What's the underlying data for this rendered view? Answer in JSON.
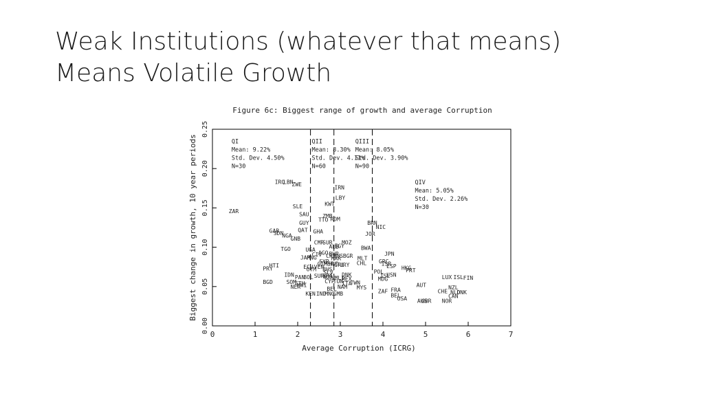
{
  "slide": {
    "title_line1": "Weak Institutions (whatever that means)",
    "title_line2": "Means Volatile Growth"
  },
  "chart_data": {
    "type": "scatter",
    "title": "Figure 6c: Biggest range of growth and average Corruption",
    "xlabel": "Average Corruption (ICRG)",
    "ylabel": "Biggest change in growth, 10 year periods",
    "xlim": [
      0,
      7
    ],
    "ylim": [
      0,
      0.25
    ],
    "x_ticks": [
      "0",
      "1",
      "2",
      "3",
      "4",
      "5",
      "6",
      "7"
    ],
    "y_ticks": [
      "0.00",
      "0.05",
      "0.10",
      "0.15",
      "0.20",
      "0.25"
    ],
    "grid": false,
    "dividers_x": [
      2.3,
      2.85,
      3.75
    ],
    "quadrants": [
      {
        "name": "QI",
        "x": 0.45,
        "y": 0.232,
        "lines": [
          "QI",
          "Mean: 9.22%",
          "Std. Dev. 4.50%",
          "N=30"
        ]
      },
      {
        "name": "QII",
        "x": 2.33,
        "y": 0.232,
        "lines": [
          "QII",
          "Mean: 8.30%",
          "Std. Dev. 4.11%",
          "N=60"
        ]
      },
      {
        "name": "QIII",
        "x": 3.35,
        "y": 0.232,
        "lines": [
          "QIII",
          "Mean: 8.05%",
          "Std. Dev. 3.90%",
          "N=90"
        ]
      },
      {
        "name": "QIV",
        "x": 4.75,
        "y": 0.18,
        "lines": [
          "QIV",
          "Mean: 5.05%",
          "Std. Dev. 2.26%",
          "N=30"
        ]
      }
    ],
    "points": [
      {
        "label": "IRQ",
        "x": 1.58,
        "y": 0.183
      },
      {
        "label": "LBN",
        "x": 1.78,
        "y": 0.183
      },
      {
        "label": "ZWE",
        "x": 1.98,
        "y": 0.18
      },
      {
        "label": "IRN",
        "x": 2.98,
        "y": 0.176
      },
      {
        "label": "LBY",
        "x": 3.0,
        "y": 0.163
      },
      {
        "label": "KWT",
        "x": 2.75,
        "y": 0.155
      },
      {
        "label": "SLE",
        "x": 2.0,
        "y": 0.152
      },
      {
        "label": "ZAR",
        "x": 0.5,
        "y": 0.146
      },
      {
        "label": "SAU",
        "x": 2.15,
        "y": 0.142
      },
      {
        "label": "ZMB",
        "x": 2.7,
        "y": 0.14
      },
      {
        "label": "ROM",
        "x": 2.88,
        "y": 0.136
      },
      {
        "label": "TTO",
        "x": 2.6,
        "y": 0.135
      },
      {
        "label": "GUY",
        "x": 2.15,
        "y": 0.131
      },
      {
        "label": "BRN",
        "x": 3.75,
        "y": 0.131
      },
      {
        "label": "NIC",
        "x": 3.95,
        "y": 0.126
      },
      {
        "label": "GAB",
        "x": 1.45,
        "y": 0.121
      },
      {
        "label": "QAT",
        "x": 2.12,
        "y": 0.122
      },
      {
        "label": "SDN",
        "x": 1.55,
        "y": 0.118
      },
      {
        "label": "NGA",
        "x": 1.75,
        "y": 0.115
      },
      {
        "label": "GHA",
        "x": 2.48,
        "y": 0.12
      },
      {
        "label": "JOR",
        "x": 3.7,
        "y": 0.117
      },
      {
        "label": "GNB",
        "x": 1.95,
        "y": 0.111
      },
      {
        "label": "CMR",
        "x": 2.5,
        "y": 0.106
      },
      {
        "label": "SUR",
        "x": 2.7,
        "y": 0.106
      },
      {
        "label": "MOZ",
        "x": 3.15,
        "y": 0.106
      },
      {
        "label": "ALB",
        "x": 2.85,
        "y": 0.101
      },
      {
        "label": "EGY",
        "x": 2.98,
        "y": 0.102
      },
      {
        "label": "BWA",
        "x": 3.6,
        "y": 0.099
      },
      {
        "label": "TGO",
        "x": 1.72,
        "y": 0.098
      },
      {
        "label": "UGA",
        "x": 2.3,
        "y": 0.097
      },
      {
        "label": "JPN",
        "x": 4.15,
        "y": 0.092
      },
      {
        "label": "CIV",
        "x": 2.45,
        "y": 0.091
      },
      {
        "label": "AGO",
        "x": 2.6,
        "y": 0.093
      },
      {
        "label": "BHR",
        "x": 2.85,
        "y": 0.092
      },
      {
        "label": "CRI",
        "x": 2.78,
        "y": 0.089
      },
      {
        "label": "RUS",
        "x": 2.95,
        "y": 0.089
      },
      {
        "label": "BGR",
        "x": 3.18,
        "y": 0.089
      },
      {
        "label": "JAM",
        "x": 2.18,
        "y": 0.087
      },
      {
        "label": "PNG",
        "x": 2.33,
        "y": 0.087
      },
      {
        "label": "MAR",
        "x": 2.9,
        "y": 0.086
      },
      {
        "label": "MLT",
        "x": 3.52,
        "y": 0.086
      },
      {
        "label": "SYR",
        "x": 2.62,
        "y": 0.082
      },
      {
        "label": "CHL",
        "x": 3.5,
        "y": 0.08
      },
      {
        "label": "GRC",
        "x": 4.02,
        "y": 0.082
      },
      {
        "label": "ISR",
        "x": 4.08,
        "y": 0.079
      },
      {
        "label": "PER",
        "x": 2.73,
        "y": 0.079
      },
      {
        "label": "HND",
        "x": 2.85,
        "y": 0.079
      },
      {
        "label": "IRL",
        "x": 2.98,
        "y": 0.078
      },
      {
        "label": "URY",
        "x": 3.1,
        "y": 0.078
      },
      {
        "label": "GTM",
        "x": 2.58,
        "y": 0.079
      },
      {
        "label": "ESP",
        "x": 4.2,
        "y": 0.076
      },
      {
        "label": "HTI",
        "x": 1.45,
        "y": 0.077
      },
      {
        "label": "ECU",
        "x": 2.25,
        "y": 0.075
      },
      {
        "label": "VEN",
        "x": 2.5,
        "y": 0.075
      },
      {
        "label": "HKG",
        "x": 4.55,
        "y": 0.074
      },
      {
        "label": "PRY",
        "x": 1.3,
        "y": 0.073
      },
      {
        "label": "OTM",
        "x": 2.32,
        "y": 0.072
      },
      {
        "label": "BHS",
        "x": 2.7,
        "y": 0.072
      },
      {
        "label": "PRT",
        "x": 4.65,
        "y": 0.071
      },
      {
        "label": "POL",
        "x": 3.9,
        "y": 0.069
      },
      {
        "label": "SLV",
        "x": 2.72,
        "y": 0.068
      },
      {
        "label": "IDN",
        "x": 1.8,
        "y": 0.065
      },
      {
        "label": "SUR",
        "x": 2.5,
        "y": 0.064
      },
      {
        "label": "BRA",
        "x": 2.7,
        "y": 0.064
      },
      {
        "label": "DNK",
        "x": 3.15,
        "y": 0.065
      },
      {
        "label": "ISL",
        "x": 4.05,
        "y": 0.064
      },
      {
        "label": "USN",
        "x": 4.2,
        "y": 0.065
      },
      {
        "label": "PAN",
        "x": 2.05,
        "y": 0.062
      },
      {
        "label": "BOL",
        "x": 2.25,
        "y": 0.062
      },
      {
        "label": "NZA",
        "x": 2.72,
        "y": 0.062
      },
      {
        "label": "LUX",
        "x": 5.5,
        "y": 0.062
      },
      {
        "label": "ISL",
        "x": 5.77,
        "y": 0.062
      },
      {
        "label": "FIN",
        "x": 6.0,
        "y": 0.061
      },
      {
        "label": "MLI",
        "x": 2.98,
        "y": 0.061
      },
      {
        "label": "MEX",
        "x": 3.15,
        "y": 0.06
      },
      {
        "label": "MDG",
        "x": 4.0,
        "y": 0.06
      },
      {
        "label": "CYP",
        "x": 2.75,
        "y": 0.057
      },
      {
        "label": "TUN",
        "x": 2.95,
        "y": 0.057
      },
      {
        "label": "BGD",
        "x": 1.3,
        "y": 0.056
      },
      {
        "label": "SOM",
        "x": 1.85,
        "y": 0.056
      },
      {
        "label": "ETH",
        "x": 2.05,
        "y": 0.054
      },
      {
        "label": "ITA",
        "x": 3.15,
        "y": 0.054
      },
      {
        "label": "TWN",
        "x": 3.35,
        "y": 0.055
      },
      {
        "label": "AUT",
        "x": 4.9,
        "y": 0.052
      },
      {
        "label": "NER",
        "x": 1.95,
        "y": 0.05
      },
      {
        "label": "MWI",
        "x": 2.1,
        "y": 0.052
      },
      {
        "label": "NAM",
        "x": 3.05,
        "y": 0.05
      },
      {
        "label": "MYS",
        "x": 3.5,
        "y": 0.049
      },
      {
        "label": "NZL",
        "x": 5.65,
        "y": 0.049
      },
      {
        "label": "BEL",
        "x": 2.8,
        "y": 0.047
      },
      {
        "label": "FRA",
        "x": 4.3,
        "y": 0.046
      },
      {
        "label": "ZAF",
        "x": 4.0,
        "y": 0.044
      },
      {
        "label": "CHE",
        "x": 5.4,
        "y": 0.044
      },
      {
        "label": "NLD",
        "x": 5.7,
        "y": 0.043
      },
      {
        "label": "DNK",
        "x": 5.85,
        "y": 0.043
      },
      {
        "label": "KEN",
        "x": 2.3,
        "y": 0.041
      },
      {
        "label": "IND",
        "x": 2.55,
        "y": 0.041
      },
      {
        "label": "MNG",
        "x": 2.75,
        "y": 0.041
      },
      {
        "label": "GMB",
        "x": 2.95,
        "y": 0.041
      },
      {
        "label": "BEL",
        "x": 4.3,
        "y": 0.039
      },
      {
        "label": "CAN",
        "x": 5.65,
        "y": 0.038
      },
      {
        "label": "USA",
        "x": 4.45,
        "y": 0.035
      },
      {
        "label": "AUS",
        "x": 4.92,
        "y": 0.032
      },
      {
        "label": "GBR",
        "x": 5.02,
        "y": 0.032
      },
      {
        "label": "NOR",
        "x": 5.5,
        "y": 0.032
      }
    ]
  }
}
